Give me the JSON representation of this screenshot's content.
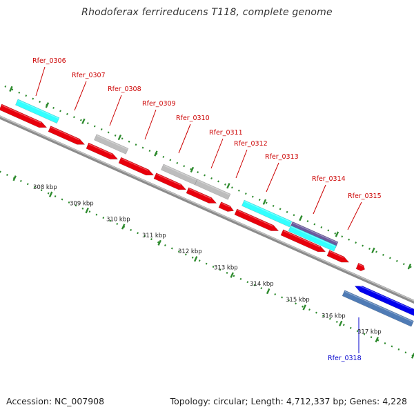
{
  "title": "Rhodoferax ferrireducens T118, complete genome",
  "footer": {
    "accession_label": "Accession:",
    "accession": "NC_007908",
    "topology_label": "Topology:",
    "topology": "circular",
    "length_label": "Length:",
    "length": "4,712,337 bp",
    "genes_label": "Genes:",
    "genes": "4,228"
  },
  "colors": {
    "backbone": "#8c8c8c",
    "tick_green": "#2e8b2e",
    "plus_label": "#cc0000",
    "minus_label": "#0000cc",
    "red_gene": "#e8000c",
    "gray_gene": "#bdbdbd",
    "cyan_gene": "#33ffff",
    "purple_gene": "#6a5a9e",
    "blue_gene": "#0000ee",
    "steel_gene": "#4f7bb5"
  },
  "scale": {
    "unit": "kbp",
    "ticks": [
      308,
      309,
      310,
      311,
      312,
      313,
      314,
      315,
      316,
      317
    ]
  },
  "gene_labels": [
    {
      "id": "Rfer_0306",
      "strand": "plus"
    },
    {
      "id": "Rfer_0307",
      "strand": "plus"
    },
    {
      "id": "Rfer_0308",
      "strand": "plus"
    },
    {
      "id": "Rfer_0309",
      "strand": "plus"
    },
    {
      "id": "Rfer_0310",
      "strand": "plus"
    },
    {
      "id": "Rfer_0311",
      "strand": "plus"
    },
    {
      "id": "Rfer_0312",
      "strand": "plus"
    },
    {
      "id": "Rfer_0313",
      "strand": "plus"
    },
    {
      "id": "Rfer_0314",
      "strand": "plus"
    },
    {
      "id": "Rfer_0315",
      "strand": "plus"
    },
    {
      "id": "Rfer_0318",
      "strand": "minus"
    }
  ]
}
